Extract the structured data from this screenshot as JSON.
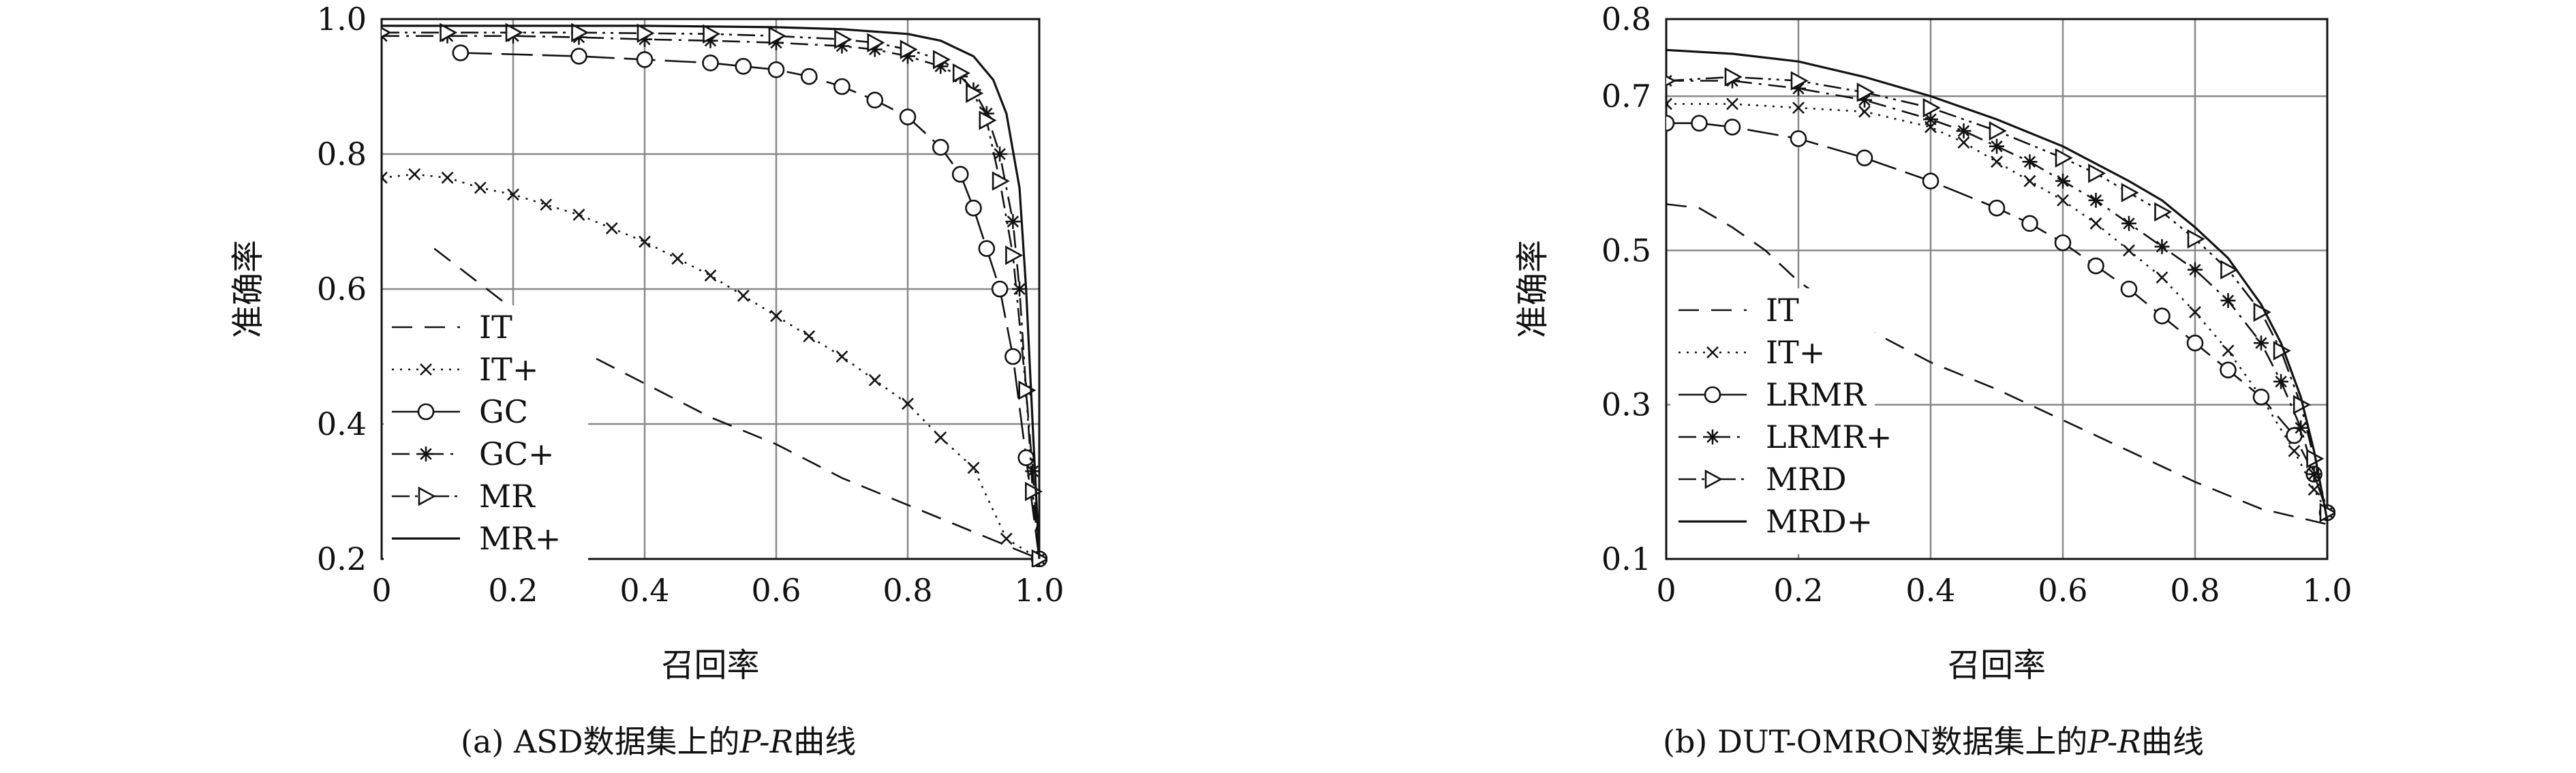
{
  "captions": [
    {
      "prefix": "(a) ASD数据集上的",
      "pr": "P-R",
      "suffix": "曲线"
    },
    {
      "prefix": "(b) DUT-OMRON数据集上的",
      "pr": "P-R",
      "suffix": "曲线"
    }
  ],
  "chart_data": [
    {
      "type": "line",
      "xlabel": "召回率",
      "ylabel": "准确率",
      "xlim": [
        0,
        1.0
      ],
      "ylim": [
        0.2,
        1.0
      ],
      "xticks": [
        "0",
        "0.2",
        "0.4",
        "0.6",
        "0.8",
        "1.0"
      ],
      "yticks": [
        "0.2",
        "0.4",
        "0.6",
        "0.8",
        "1.0"
      ],
      "grid": true,
      "legend_position": "bottom-left",
      "series": [
        {
          "name": "IT",
          "dash": "dashed",
          "marker": "none",
          "x": [
            0.08,
            0.2,
            0.3,
            0.4,
            0.5,
            0.6,
            0.7,
            0.8,
            0.9,
            1.0
          ],
          "y": [
            0.66,
            0.57,
            0.51,
            0.46,
            0.41,
            0.37,
            0.32,
            0.28,
            0.24,
            0.2
          ]
        },
        {
          "name": "IT+",
          "dash": "dotted",
          "marker": "x",
          "x": [
            0.0,
            0.05,
            0.1,
            0.15,
            0.2,
            0.25,
            0.3,
            0.35,
            0.4,
            0.45,
            0.5,
            0.55,
            0.6,
            0.65,
            0.7,
            0.75,
            0.8,
            0.85,
            0.9,
            0.95,
            1.0
          ],
          "y": [
            0.765,
            0.77,
            0.765,
            0.75,
            0.74,
            0.725,
            0.71,
            0.69,
            0.67,
            0.645,
            0.62,
            0.59,
            0.56,
            0.53,
            0.5,
            0.465,
            0.43,
            0.38,
            0.335,
            0.23,
            0.2
          ]
        },
        {
          "name": "GC",
          "dash": "longdash",
          "marker": "circle",
          "x": [
            0.12,
            0.3,
            0.4,
            0.5,
            0.55,
            0.6,
            0.65,
            0.7,
            0.75,
            0.8,
            0.85,
            0.88,
            0.9,
            0.92,
            0.94,
            0.96,
            0.98,
            1.0
          ],
          "y": [
            0.95,
            0.945,
            0.94,
            0.935,
            0.93,
            0.925,
            0.915,
            0.9,
            0.88,
            0.855,
            0.81,
            0.77,
            0.72,
            0.66,
            0.6,
            0.5,
            0.35,
            0.2
          ]
        },
        {
          "name": "GC+",
          "dash": "dashdot",
          "marker": "star",
          "x": [
            0.0,
            0.1,
            0.2,
            0.3,
            0.4,
            0.5,
            0.6,
            0.7,
            0.75,
            0.8,
            0.85,
            0.88,
            0.9,
            0.92,
            0.94,
            0.96,
            0.97,
            0.98,
            0.99,
            1.0
          ],
          "y": [
            0.975,
            0.975,
            0.975,
            0.973,
            0.97,
            0.968,
            0.965,
            0.96,
            0.955,
            0.945,
            0.93,
            0.915,
            0.895,
            0.86,
            0.8,
            0.7,
            0.6,
            0.45,
            0.33,
            0.2
          ]
        },
        {
          "name": "MR",
          "dash": "dashdotdot",
          "marker": "triangle",
          "x": [
            0.0,
            0.1,
            0.2,
            0.3,
            0.4,
            0.5,
            0.6,
            0.7,
            0.75,
            0.8,
            0.85,
            0.88,
            0.9,
            0.92,
            0.94,
            0.96,
            0.98,
            0.99,
            1.0
          ],
          "y": [
            0.98,
            0.98,
            0.98,
            0.98,
            0.979,
            0.978,
            0.975,
            0.97,
            0.965,
            0.955,
            0.94,
            0.92,
            0.89,
            0.85,
            0.76,
            0.65,
            0.45,
            0.3,
            0.2
          ]
        },
        {
          "name": "MR+",
          "dash": "solid",
          "marker": "none",
          "x": [
            0.0,
            0.2,
            0.4,
            0.6,
            0.7,
            0.8,
            0.85,
            0.9,
            0.93,
            0.95,
            0.97,
            0.98,
            0.99,
            1.0
          ],
          "y": [
            0.99,
            0.99,
            0.99,
            0.988,
            0.985,
            0.978,
            0.968,
            0.945,
            0.91,
            0.86,
            0.75,
            0.6,
            0.4,
            0.2
          ]
        }
      ]
    },
    {
      "type": "line",
      "xlabel": "召回率",
      "ylabel": "准确率",
      "xlim": [
        0,
        1.0
      ],
      "ylim": [
        0.1,
        0.8
      ],
      "xticks": [
        "0",
        "0.2",
        "0.4",
        "0.6",
        "0.8",
        "1.0"
      ],
      "yticks": [
        "0.1",
        "0.3",
        "0.5",
        "0.7",
        "0.8"
      ],
      "grid": true,
      "legend_position": "bottom-left",
      "series": [
        {
          "name": "IT",
          "dash": "dashed",
          "marker": "none",
          "x": [
            0.0,
            0.05,
            0.1,
            0.15,
            0.2,
            0.3,
            0.4,
            0.5,
            0.6,
            0.7,
            0.8,
            0.9,
            1.0
          ],
          "y": [
            0.56,
            0.555,
            0.53,
            0.5,
            0.46,
            0.4,
            0.355,
            0.32,
            0.28,
            0.24,
            0.2,
            0.165,
            0.145
          ]
        },
        {
          "name": "IT+",
          "dash": "dotted",
          "marker": "x",
          "x": [
            0.0,
            0.1,
            0.2,
            0.3,
            0.4,
            0.45,
            0.5,
            0.55,
            0.6,
            0.65,
            0.7,
            0.75,
            0.8,
            0.85,
            0.9,
            0.95,
            0.98,
            1.0
          ],
          "y": [
            0.69,
            0.69,
            0.685,
            0.68,
            0.66,
            0.64,
            0.615,
            0.59,
            0.565,
            0.535,
            0.5,
            0.465,
            0.42,
            0.37,
            0.31,
            0.24,
            0.19,
            0.16
          ]
        },
        {
          "name": "LRMR",
          "dash": "longdash",
          "marker": "circle",
          "x": [
            0.0,
            0.05,
            0.1,
            0.2,
            0.3,
            0.4,
            0.5,
            0.55,
            0.6,
            0.65,
            0.7,
            0.75,
            0.8,
            0.85,
            0.9,
            0.95,
            0.98,
            1.0
          ],
          "y": [
            0.665,
            0.665,
            0.66,
            0.645,
            0.62,
            0.59,
            0.555,
            0.535,
            0.51,
            0.48,
            0.45,
            0.415,
            0.38,
            0.345,
            0.31,
            0.26,
            0.21,
            0.16
          ]
        },
        {
          "name": "LRMR+",
          "dash": "dashdot",
          "marker": "star",
          "x": [
            0.0,
            0.1,
            0.2,
            0.3,
            0.4,
            0.45,
            0.5,
            0.55,
            0.6,
            0.65,
            0.7,
            0.75,
            0.8,
            0.85,
            0.9,
            0.93,
            0.96,
            0.98,
            1.0
          ],
          "y": [
            0.72,
            0.72,
            0.71,
            0.695,
            0.67,
            0.655,
            0.635,
            0.615,
            0.59,
            0.565,
            0.535,
            0.505,
            0.475,
            0.435,
            0.38,
            0.33,
            0.27,
            0.21,
            0.16
          ]
        },
        {
          "name": "MRD",
          "dash": "dashdotdot",
          "marker": "triangle",
          "x": [
            0.0,
            0.1,
            0.2,
            0.3,
            0.4,
            0.5,
            0.6,
            0.65,
            0.7,
            0.75,
            0.8,
            0.85,
            0.9,
            0.93,
            0.96,
            0.98,
            1.0
          ],
          "y": [
            0.72,
            0.725,
            0.72,
            0.705,
            0.685,
            0.655,
            0.62,
            0.6,
            0.575,
            0.55,
            0.515,
            0.475,
            0.42,
            0.37,
            0.3,
            0.23,
            0.16
          ]
        },
        {
          "name": "MRD+",
          "dash": "solid",
          "marker": "none",
          "x": [
            0.0,
            0.1,
            0.2,
            0.3,
            0.4,
            0.5,
            0.6,
            0.7,
            0.75,
            0.8,
            0.85,
            0.9,
            0.93,
            0.96,
            0.98,
            1.0
          ],
          "y": [
            0.76,
            0.755,
            0.745,
            0.725,
            0.7,
            0.67,
            0.635,
            0.59,
            0.565,
            0.53,
            0.49,
            0.43,
            0.38,
            0.31,
            0.24,
            0.15
          ]
        }
      ]
    }
  ]
}
